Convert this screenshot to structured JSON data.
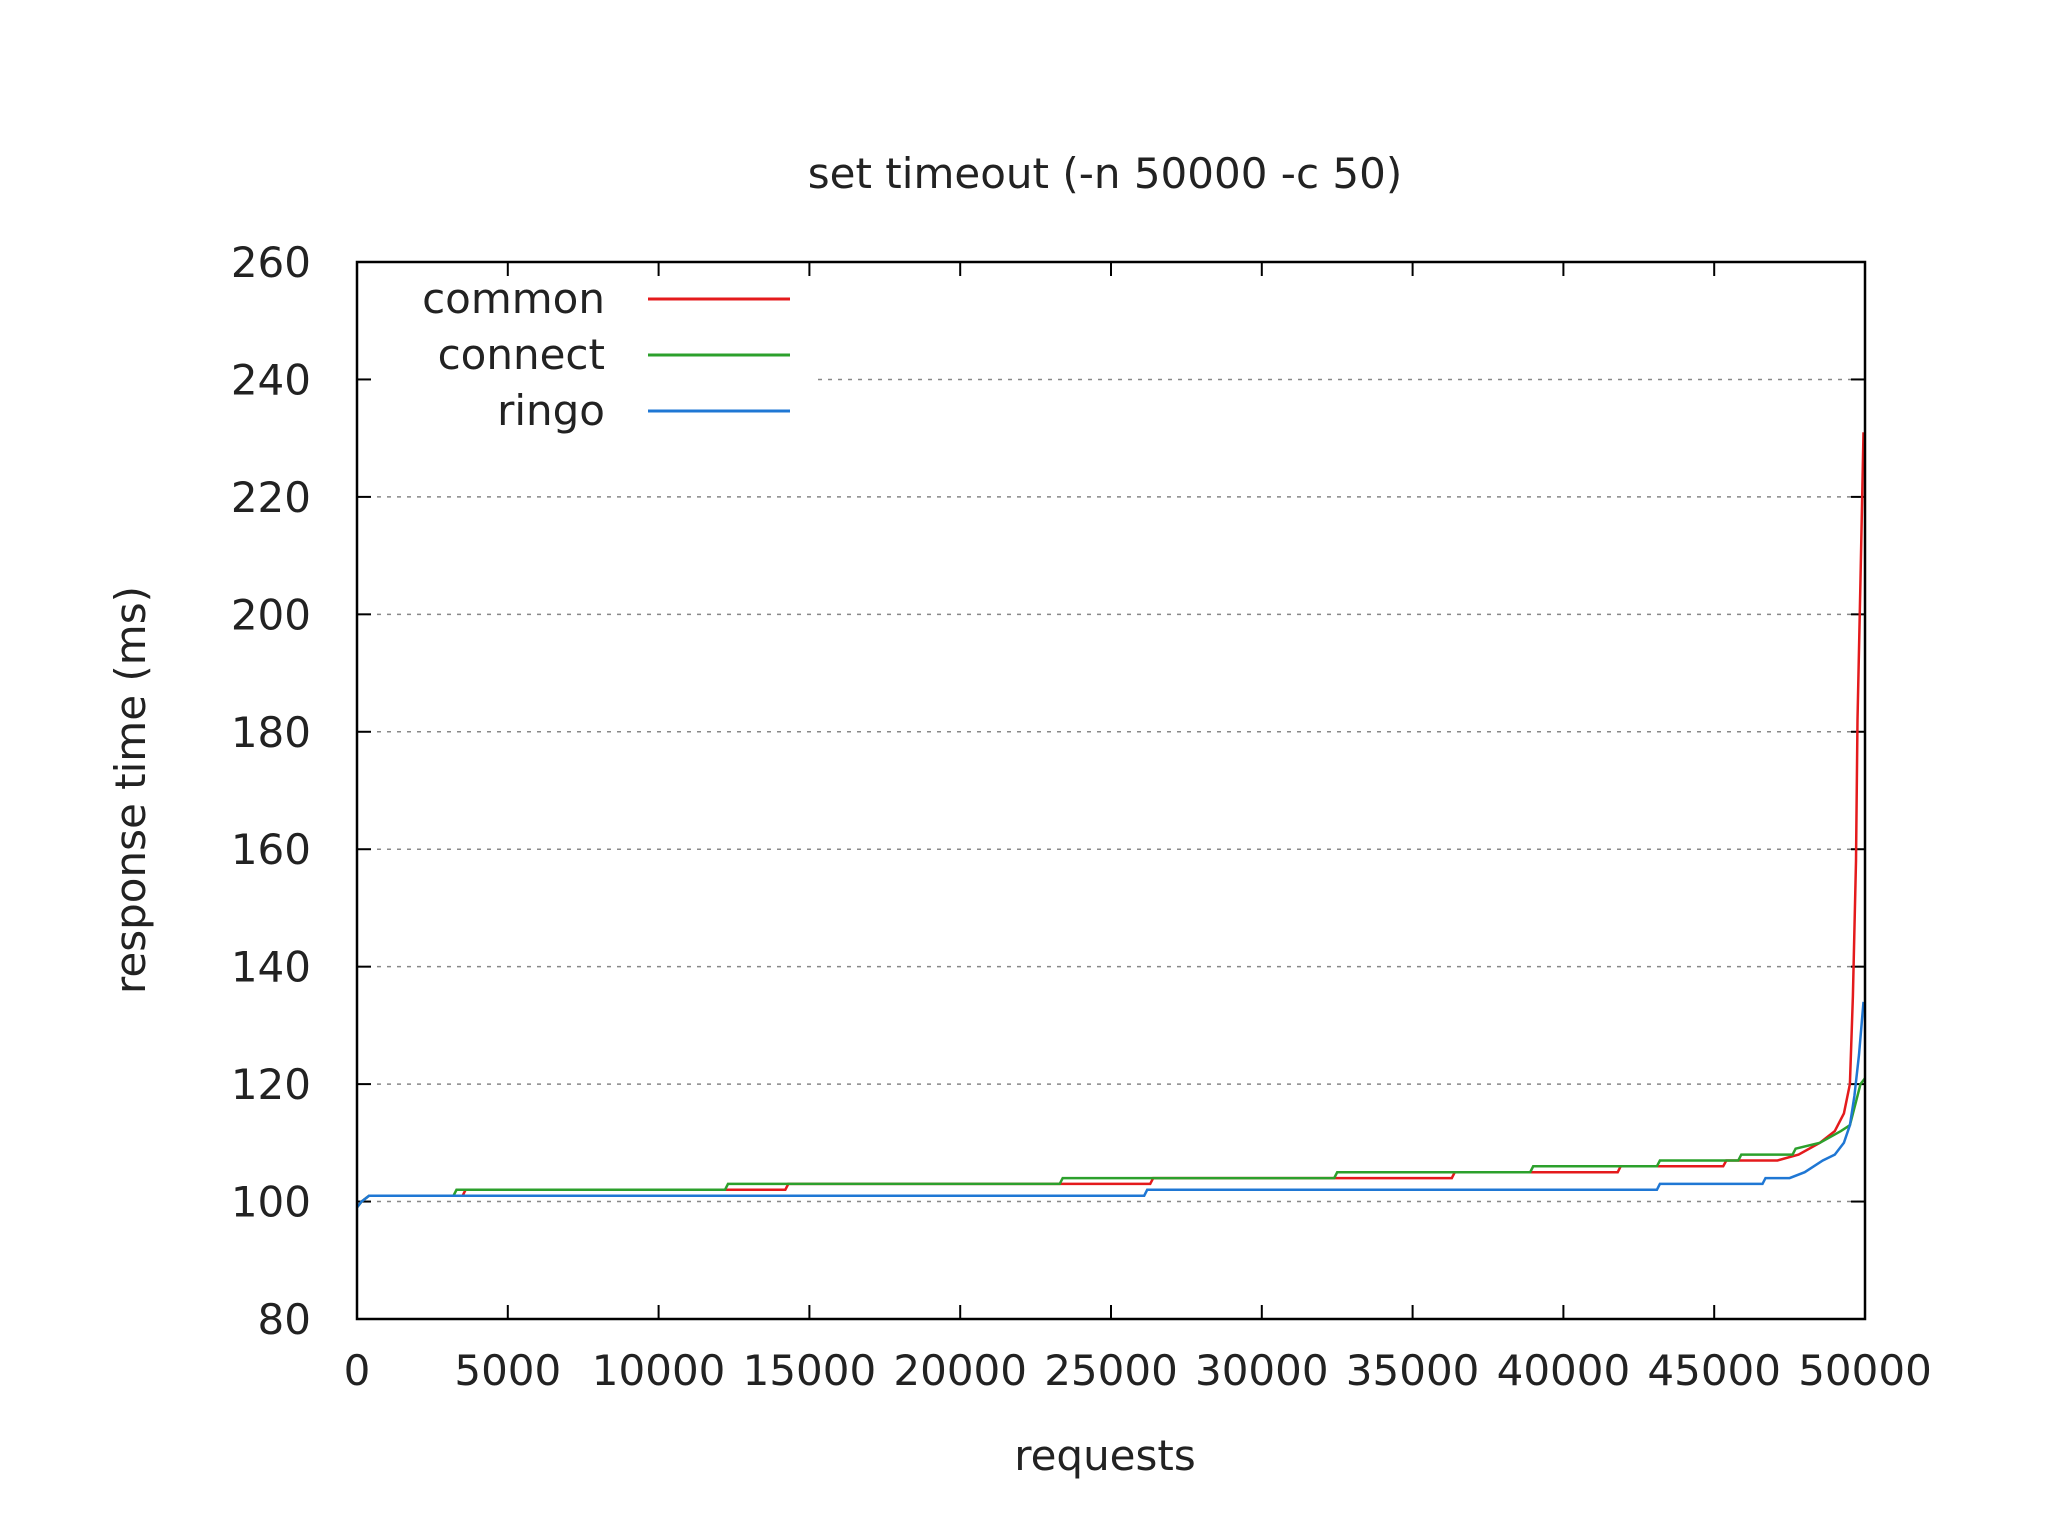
{
  "chart_data": {
    "type": "line",
    "title": "set timeout (-n 50000 -c 50)",
    "xlabel": "requests",
    "ylabel": "response time (ms)",
    "xlim": [
      0,
      50000
    ],
    "ylim": [
      80,
      260
    ],
    "xticks": [
      "0",
      "5000",
      "10000",
      "15000",
      "20000",
      "25000",
      "30000",
      "35000",
      "40000",
      "45000",
      "50000"
    ],
    "yticks": [
      "80",
      "100",
      "120",
      "140",
      "160",
      "180",
      "200",
      "220",
      "240",
      "260"
    ],
    "grid": "horizontal dashed",
    "legend_position": "top-left",
    "series": [
      {
        "name": "common",
        "color": "#e41a1c",
        "points": [
          [
            0,
            99
          ],
          [
            150,
            100
          ],
          [
            400,
            101
          ],
          [
            3500,
            101
          ],
          [
            3600,
            102
          ],
          [
            12500,
            102
          ],
          [
            12600,
            102
          ],
          [
            14200,
            102
          ],
          [
            14300,
            103
          ],
          [
            23500,
            103
          ],
          [
            23600,
            103
          ],
          [
            26300,
            103
          ],
          [
            26400,
            104
          ],
          [
            32500,
            104
          ],
          [
            32600,
            104
          ],
          [
            36300,
            104
          ],
          [
            36400,
            105
          ],
          [
            39000,
            105
          ],
          [
            39100,
            105
          ],
          [
            41800,
            105
          ],
          [
            41900,
            106
          ],
          [
            43000,
            106
          ],
          [
            43100,
            106
          ],
          [
            45300,
            106
          ],
          [
            45400,
            107
          ],
          [
            47000,
            107
          ],
          [
            47100,
            107
          ],
          [
            47800,
            108
          ],
          [
            48500,
            110
          ],
          [
            49000,
            112
          ],
          [
            49300,
            115
          ],
          [
            49500,
            120
          ],
          [
            49600,
            135
          ],
          [
            49700,
            158
          ],
          [
            49750,
            182
          ],
          [
            49850,
            206
          ],
          [
            49950,
            231
          ]
        ]
      },
      {
        "name": "connect",
        "color": "#2ca02c",
        "points": [
          [
            0,
            99
          ],
          [
            150,
            100
          ],
          [
            400,
            101
          ],
          [
            3200,
            101
          ],
          [
            3300,
            102
          ],
          [
            12200,
            102
          ],
          [
            12300,
            103
          ],
          [
            23300,
            103
          ],
          [
            23400,
            104
          ],
          [
            32400,
            104
          ],
          [
            32500,
            105
          ],
          [
            38900,
            105
          ],
          [
            39000,
            106
          ],
          [
            43100,
            106
          ],
          [
            43200,
            107
          ],
          [
            45800,
            107
          ],
          [
            45900,
            108
          ],
          [
            47600,
            108
          ],
          [
            47700,
            109
          ],
          [
            48500,
            110
          ],
          [
            49200,
            112
          ],
          [
            49500,
            113
          ],
          [
            49700,
            117
          ],
          [
            49850,
            120
          ],
          [
            50000,
            121
          ]
        ]
      },
      {
        "name": "ringo",
        "color": "#1f77d4",
        "points": [
          [
            0,
            99
          ],
          [
            150,
            100
          ],
          [
            400,
            101
          ],
          [
            26100,
            101
          ],
          [
            26200,
            102
          ],
          [
            43100,
            102
          ],
          [
            43200,
            103
          ],
          [
            46600,
            103
          ],
          [
            46700,
            104
          ],
          [
            47500,
            104
          ],
          [
            48000,
            105
          ],
          [
            48600,
            107
          ],
          [
            49000,
            108
          ],
          [
            49300,
            110
          ],
          [
            49500,
            113
          ],
          [
            49650,
            118
          ],
          [
            49800,
            125
          ],
          [
            49950,
            134
          ]
        ]
      }
    ]
  }
}
